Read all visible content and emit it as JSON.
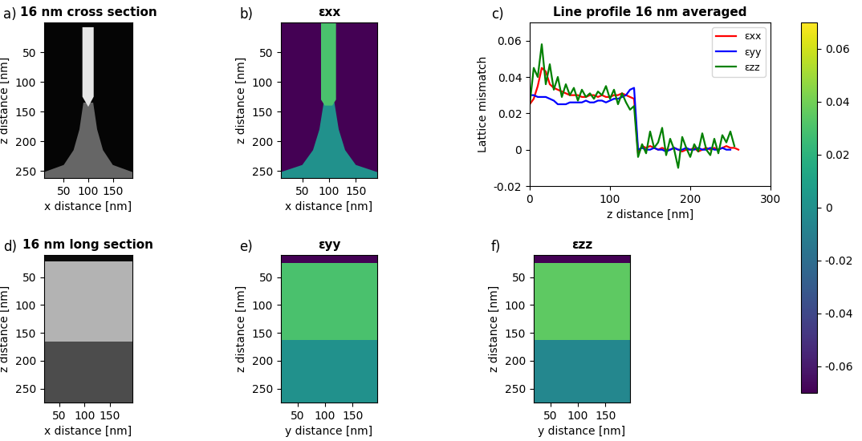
{
  "chart_data": [
    {
      "type": "image",
      "label": "a)",
      "title": "16 nm cross section",
      "x_label": "x distance [nm]",
      "y_label": "z distance [nm]",
      "xlim": [
        10,
        190
      ],
      "ylim": [
        262,
        0
      ],
      "xticks": [
        50,
        100,
        150
      ],
      "yticks": [
        50,
        100,
        150,
        200,
        250
      ],
      "clim": [
        0,
        1
      ],
      "background": 0.02,
      "regions": [
        {
          "value": 0.4,
          "polygon": [
            [
              90,
              135
            ],
            [
              110,
              135
            ],
            [
              118,
              180
            ],
            [
              130,
              215
            ],
            [
              150,
              240
            ],
            [
              190,
              252
            ],
            [
              190,
              262
            ],
            [
              10,
              262
            ],
            [
              10,
              252
            ],
            [
              50,
              240
            ],
            [
              70,
              215
            ],
            [
              82,
              180
            ]
          ]
        },
        {
          "value": 0.9,
          "polygon": [
            [
              88,
              8
            ],
            [
              111,
              8
            ],
            [
              111,
              125
            ],
            [
              100,
              142
            ],
            [
              88,
              125
            ]
          ]
        }
      ]
    },
    {
      "type": "heatmap",
      "label": "b)",
      "title": "εxx",
      "x_label": "x distance [nm]",
      "y_label": "z distance [nm]",
      "xlim": [
        10,
        190
      ],
      "ylim": [
        262,
        0
      ],
      "xticks": [
        50,
        100,
        150
      ],
      "yticks": [
        50,
        100,
        150,
        200,
        250
      ],
      "background": -0.07,
      "regions": [
        {
          "value": 0.0,
          "polygon": [
            [
              90,
              135
            ],
            [
              110,
              135
            ],
            [
              118,
              180
            ],
            [
              130,
              215
            ],
            [
              150,
              240
            ],
            [
              190,
              252
            ],
            [
              190,
              262
            ],
            [
              10,
              262
            ],
            [
              10,
              252
            ],
            [
              50,
              240
            ],
            [
              70,
              215
            ],
            [
              82,
              180
            ]
          ]
        },
        {
          "value": 0.03,
          "polygon": [
            [
              85,
              0
            ],
            [
              113,
              0
            ],
            [
              113,
              130
            ],
            [
              106,
              140
            ],
            [
              92,
              140
            ],
            [
              85,
              130
            ]
          ]
        }
      ]
    },
    {
      "type": "line",
      "label": "c)",
      "title": "Line profile 16 nm averaged",
      "x_label": "z distance [nm]",
      "y_label": "Lattice mismatch",
      "xlim": [
        0,
        300
      ],
      "ylim": [
        -0.02,
        0.07
      ],
      "xticks": [
        0,
        100,
        200,
        300
      ],
      "yticks": [
        -0.02,
        0,
        0.02,
        0.04,
        0.06
      ],
      "legend": "upper right",
      "x": [
        0,
        5,
        10,
        15,
        20,
        25,
        30,
        35,
        40,
        45,
        50,
        55,
        60,
        65,
        70,
        75,
        80,
        85,
        90,
        95,
        100,
        105,
        110,
        115,
        120,
        125,
        130,
        135,
        140,
        145,
        150,
        155,
        160,
        165,
        170,
        175,
        180,
        185,
        190,
        195,
        200,
        205,
        210,
        215,
        220,
        225,
        230,
        235,
        240,
        245,
        250,
        255,
        260
      ],
      "series": [
        {
          "name": "εxx",
          "color": "#ff0000",
          "values": [
            0.025,
            0.028,
            0.035,
            0.045,
            0.043,
            0.036,
            0.034,
            0.033,
            0.032,
            0.031,
            0.03,
            0.03,
            0.03,
            0.029,
            0.029,
            0.03,
            0.03,
            0.029,
            0.03,
            0.029,
            0.029,
            0.03,
            0.03,
            0.031,
            0.03,
            0.029,
            0.028,
            -0.002,
            0.002,
            0.001,
            0.002,
            0.001,
            0.0,
            0.001,
            0.0,
            0.0,
            0.001,
            0.0,
            -0.001,
            0.0,
            0.0,
            0.001,
            -0.001,
            0.0,
            0.001,
            0.0,
            0.001,
            0.0,
            0.001,
            0.002,
            0.001,
            0.001,
            0.0
          ]
        },
        {
          "name": "εyy",
          "color": "#0000ff",
          "values": [
            0.03,
            0.03,
            0.029,
            0.029,
            0.029,
            0.028,
            0.027,
            0.025,
            0.025,
            0.025,
            0.026,
            0.026,
            0.026,
            0.026,
            0.027,
            0.026,
            0.026,
            0.027,
            0.027,
            0.026,
            0.027,
            0.028,
            0.028,
            0.029,
            0.03,
            0.033,
            0.034,
            0.0,
            0.001,
            0.0,
            0.0,
            0.001,
            0.0,
            0.0,
            -0.001,
            0.0,
            0.001,
            0.0,
            0.0,
            0.001,
            0.0,
            0.0,
            0.001,
            0.0,
            0.0,
            0.001,
            0.0,
            0.0,
            0.001,
            0.0,
            0.0,
            null,
            null
          ]
        },
        {
          "name": "εzz",
          "color": "#008000",
          "values": [
            0.025,
            0.045,
            0.04,
            0.058,
            0.036,
            0.047,
            0.033,
            0.04,
            0.029,
            0.036,
            0.03,
            0.034,
            0.027,
            0.033,
            0.029,
            0.031,
            0.028,
            0.032,
            0.03,
            0.035,
            0.028,
            0.033,
            0.025,
            0.031,
            0.026,
            0.022,
            0.024,
            -0.004,
            0.003,
            -0.002,
            0.01,
            0.001,
            0.004,
            0.012,
            -0.003,
            0.006,
            0.0,
            -0.01,
            0.007,
            0.001,
            -0.004,
            0.003,
            -0.001,
            0.009,
            0.0,
            -0.003,
            0.006,
            -0.002,
            0.008,
            0.004,
            0.01,
            0.002,
            null
          ]
        }
      ]
    },
    {
      "type": "image",
      "label": "d)",
      "title": "16 nm long section",
      "x_label": "x distance [nm]",
      "y_label": "z distance [nm]",
      "xlim": [
        20,
        195
      ],
      "ylim": [
        275,
        10
      ],
      "xticks": [
        50,
        100,
        150
      ],
      "yticks": [
        50,
        100,
        150,
        200,
        250
      ],
      "clim": [
        0,
        1
      ],
      "background": 0.05,
      "regions": [
        {
          "value": 0.7,
          "polygon": [
            [
              20,
              22
            ],
            [
              195,
              22
            ],
            [
              195,
              165
            ],
            [
              20,
              165
            ]
          ]
        },
        {
          "value": 0.3,
          "polygon": [
            [
              20,
              165
            ],
            [
              195,
              165
            ],
            [
              195,
              275
            ],
            [
              20,
              275
            ]
          ]
        }
      ]
    },
    {
      "type": "heatmap",
      "label": "e)",
      "title": "εyy",
      "x_label": "y distance [nm]",
      "y_label": "z distance [nm]",
      "xlim": [
        20,
        195
      ],
      "ylim": [
        275,
        10
      ],
      "xticks": [
        50,
        100,
        150
      ],
      "yticks": [
        50,
        100,
        150,
        200,
        250
      ],
      "background": -0.07,
      "regions": [
        {
          "value": 0.03,
          "polygon": [
            [
              20,
              24
            ],
            [
              195,
              24
            ],
            [
              195,
              163
            ],
            [
              20,
              163
            ]
          ]
        },
        {
          "value": 0.0,
          "polygon": [
            [
              20,
              163
            ],
            [
              195,
              163
            ],
            [
              195,
              275
            ],
            [
              20,
              275
            ]
          ]
        }
      ]
    },
    {
      "type": "heatmap",
      "label": "f)",
      "title": "εzz",
      "x_label": "y distance [nm]",
      "y_label": "z distance [nm]",
      "xlim": [
        20,
        195
      ],
      "ylim": [
        275,
        10
      ],
      "xticks": [
        50,
        100,
        150
      ],
      "yticks": [
        50,
        100,
        150,
        200,
        250
      ],
      "background": -0.07,
      "regions": [
        {
          "value": 0.035,
          "polygon": [
            [
              20,
              24
            ],
            [
              195,
              24
            ],
            [
              195,
              163
            ],
            [
              20,
              163
            ]
          ]
        },
        {
          "value": -0.005,
          "polygon": [
            [
              20,
              163
            ],
            [
              195,
              163
            ],
            [
              195,
              275
            ],
            [
              20,
              275
            ]
          ]
        }
      ]
    }
  ],
  "colorbar": {
    "range": [
      -0.07,
      0.07
    ],
    "ticks": [
      -0.06,
      -0.04,
      -0.02,
      0,
      0.02,
      0.04,
      0.06
    ]
  }
}
